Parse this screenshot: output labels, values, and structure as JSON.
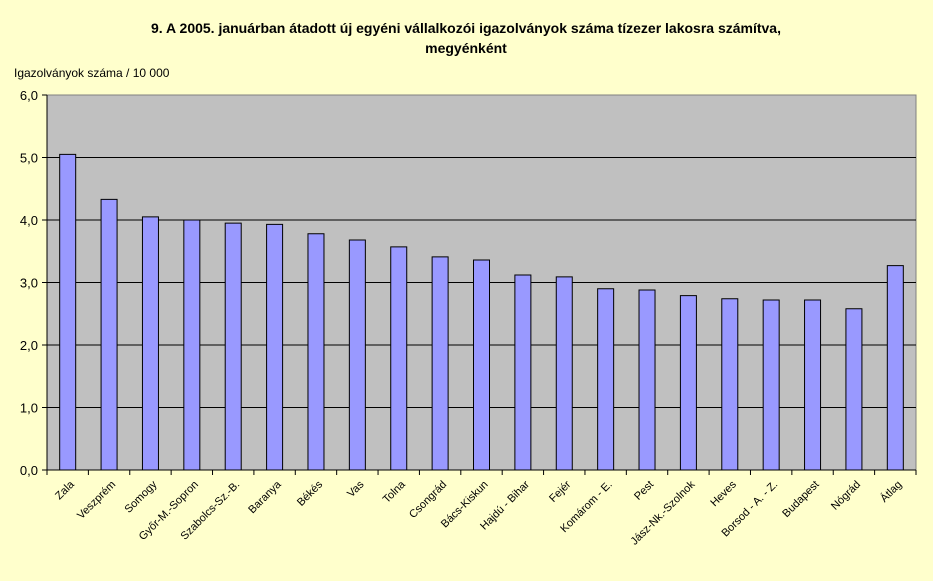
{
  "chart_data": {
    "type": "bar",
    "title_line1": "9. A 2005. januárban átadott új egyéni vállalkozói igazolványok száma tízezer lakosra számítva,",
    "title_line2": "megyénként",
    "ylabel": "Igazolványok száma / 10 000",
    "ylim": [
      0,
      6
    ],
    "yticks": [
      "0,0",
      "1,0",
      "2,0",
      "3,0",
      "4,0",
      "5,0",
      "6,0"
    ],
    "grid": true,
    "categories": [
      "Zala",
      "Veszprém",
      "Somogy",
      "Győr-M.-Sopron",
      "Szabolcs-Sz.-B.",
      "Baranya",
      "Békés",
      "Vas",
      "Tolna",
      "Csongrád",
      "Bács-Kiskun",
      "Hajdú - Bihar",
      "Fejér",
      "Komárom - E.",
      "Pest",
      "Jász-Nk.-Szolnok",
      "Heves",
      "Borsod - A. - Z.",
      "Budapest",
      "Nógrád",
      "Átlag"
    ],
    "values": [
      5.05,
      4.33,
      4.05,
      4.0,
      3.95,
      3.93,
      3.78,
      3.68,
      3.57,
      3.41,
      3.36,
      3.12,
      3.09,
      2.9,
      2.88,
      2.79,
      2.74,
      2.72,
      2.72,
      2.58,
      3.27
    ],
    "colors": {
      "plot_background": "#c0c0c0",
      "bar_fill": "#9999ff",
      "bar_stroke": "#000000",
      "page_background": "#ffffcc"
    }
  }
}
